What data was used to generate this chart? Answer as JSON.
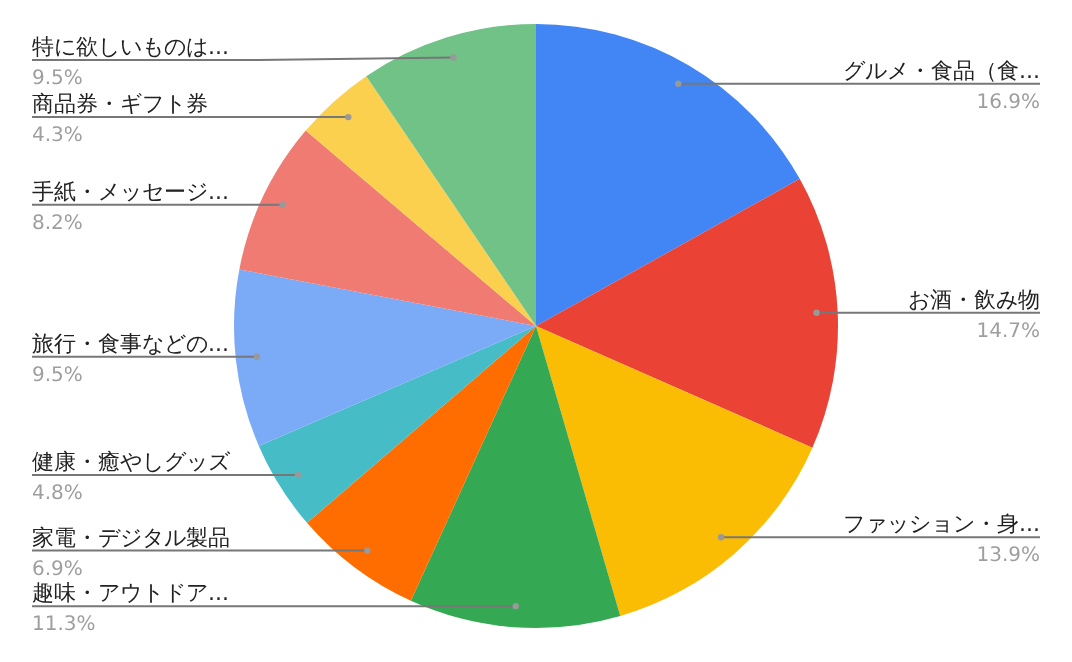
{
  "chart_data": {
    "type": "pie",
    "categories": [
      "グルメ・食品（食...",
      "お酒・飲み物",
      "ファッション・身...",
      "趣味・アウトドア...",
      "家電・デジタル製品",
      "健康・癒やしグッズ",
      "旅行・食事などの...",
      "手紙・メッセージ...",
      "商品券・ギフト券",
      "特に欲しいものは..."
    ],
    "values": [
      16.9,
      14.7,
      13.9,
      11.3,
      6.9,
      4.8,
      9.5,
      8.2,
      4.3,
      9.5
    ],
    "colors": [
      "#4285f4",
      "#ea4335",
      "#fbbc04",
      "#34a853",
      "#ff6d01",
      "#46bdc6",
      "#7baaf7",
      "#f07b72",
      "#fcd04f",
      "#71c287"
    ],
    "value_labels": [
      "16.9%",
      "14.7%",
      "13.9%",
      "11.3%",
      "6.9%",
      "4.8%",
      "9.5%",
      "8.2%",
      "4.3%",
      "9.5%"
    ]
  }
}
